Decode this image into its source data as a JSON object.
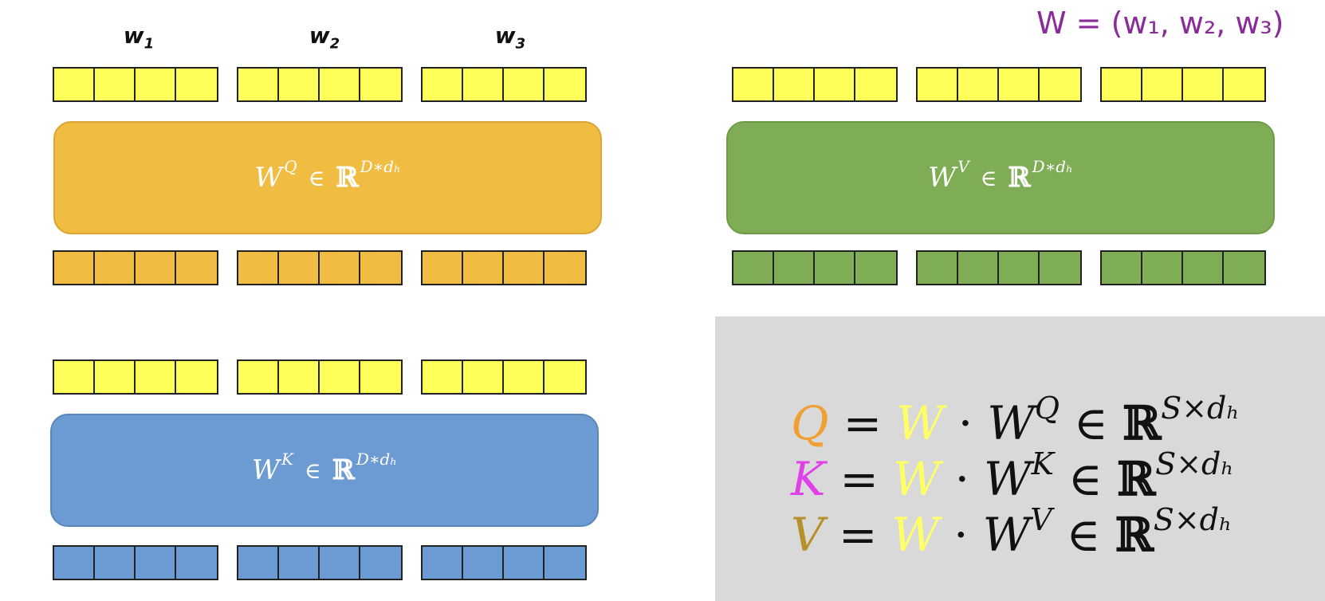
{
  "headers": [
    {
      "base": "w",
      "sub": "1"
    },
    {
      "base": "w",
      "sub": "2"
    },
    {
      "base": "w",
      "sub": "3"
    }
  ],
  "boxes": {
    "q": {
      "base": "W",
      "sup": "Q",
      "in": "∈",
      "set": "ℝ",
      "dim": "D∗dₕ",
      "color": "#f0bd42"
    },
    "v": {
      "base": "W",
      "sup": "V",
      "in": "∈",
      "set": "ℝ",
      "dim": "D∗dₕ",
      "color": "#7fad55"
    },
    "k": {
      "base": "W",
      "sup": "K",
      "in": "∈",
      "set": "ℝ",
      "dim": "D∗dₕ",
      "color": "#6b9bd2"
    }
  },
  "equations": [
    {
      "lhs": "Q",
      "lhs_color": "#f0a030",
      "w": "W",
      "w_color": "#ffff66",
      "dot": "·",
      "base": "W",
      "sup": "Q",
      "eq": "=",
      "in": "∈",
      "set": "ℝ",
      "dim": "S×dₕ"
    },
    {
      "lhs": "K",
      "lhs_color": "#e040e8",
      "w": "W",
      "w_color": "#ffff66",
      "dot": "·",
      "base": "W",
      "sup": "K",
      "eq": "=",
      "in": "∈",
      "set": "ℝ",
      "dim": "S×dₕ"
    },
    {
      "lhs": "V",
      "lhs_color": "#b8902a",
      "w": "W",
      "w_color": "#ffff66",
      "dot": "·",
      "base": "W",
      "sup": "V",
      "eq": "=",
      "in": "∈",
      "set": "ℝ",
      "dim": "S×dₕ"
    }
  ],
  "handwritten": "W = (w₁, w₂, w₃)",
  "colors": {
    "yellow": "#ffff5a",
    "orange": "#f0bd42",
    "green": "#7fad55",
    "blue": "#6b9bd2",
    "handwriting": "#8b2a9a"
  }
}
